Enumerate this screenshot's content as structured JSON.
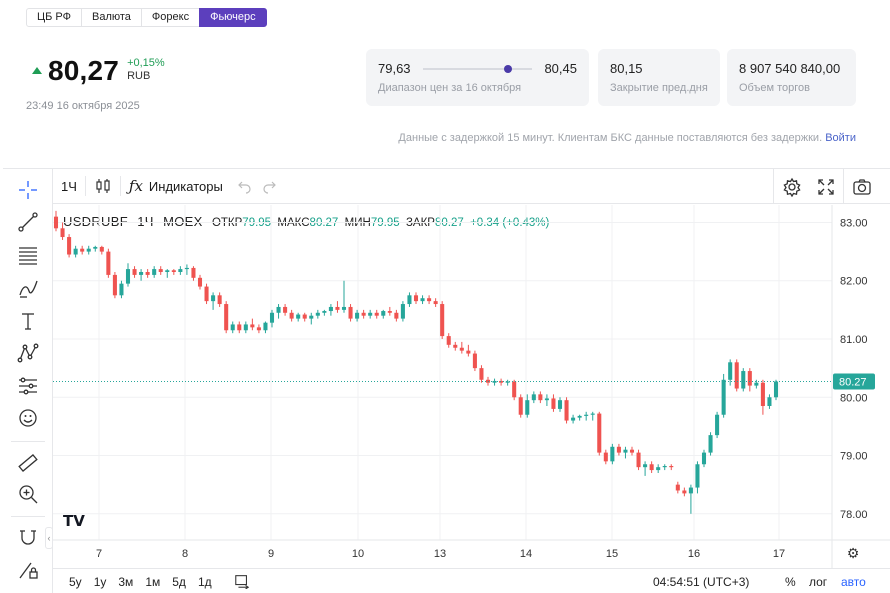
{
  "tabs": [
    {
      "label": "ЦБ РФ",
      "active": false
    },
    {
      "label": "Валюта",
      "active": false
    },
    {
      "label": "Форекс",
      "active": false
    },
    {
      "label": "Фьючерс",
      "active": true
    }
  ],
  "quote": {
    "price": "80,27",
    "change_pct": "+0,15%",
    "currency": "RUB",
    "timestamp": "23:49 16 октября 2025",
    "direction": "up"
  },
  "stats": {
    "range": {
      "low": "79,63",
      "high": "80,45",
      "label": "Диапазон цен за 16 октября",
      "position_fraction": 0.78
    },
    "prev_close": {
      "value": "80,15",
      "label": "Закрытие пред.дня"
    },
    "volume": {
      "value": "8 907 540 840,00",
      "label": "Объем торгов"
    }
  },
  "delay_note": {
    "text": "Данные с задержкой 15 минут. Клиентам БКС данные поставляются без задержки.",
    "link": "Войти"
  },
  "toolbar": {
    "interval": "1Ч",
    "indicators_label": "Индикаторы",
    "icons": [
      "candles-icon",
      "function-icon",
      "undo-icon",
      "redo-icon",
      "settings-icon",
      "fullscreen-icon",
      "camera-icon"
    ]
  },
  "left_tools": [
    "crosshair-icon",
    "trend-line-icon",
    "fib-icon",
    "brush-icon",
    "text-icon",
    "pattern-icon",
    "measure-prediction-icon",
    "emoji-icon",
    "ruler-icon",
    "zoom-in-icon",
    "magnet-icon",
    "lock-pen-icon"
  ],
  "legend": {
    "symbol": "USDRUBF",
    "interval": "1Ч",
    "exchange": "MOEX",
    "open_label": "ОТКР",
    "open": "79.95",
    "high_label": "МАКС",
    "high": "80.27",
    "low_label": "МИН",
    "low": "79.95",
    "close_label": "ЗАКР",
    "close": "80.27",
    "change": "+0.34 (+0.43%)"
  },
  "bottom_bar": {
    "ranges": [
      "5y",
      "1y",
      "3м",
      "1м",
      "5д",
      "1д"
    ],
    "clock": "04:54:51 (UTC+3)",
    "percent": "%",
    "log": "лог",
    "auto": "авто"
  },
  "colors": {
    "up": "#26a69a",
    "down": "#ef5350",
    "accent": "#5c3fbd",
    "price_tag": "#26a69a"
  },
  "chart_data": {
    "type": "candlestick",
    "symbol": "USDRUBF",
    "x_ticks": [
      "7",
      "8",
      "9",
      "10",
      "13",
      "14",
      "15",
      "16",
      "17"
    ],
    "y_ticks": [
      "78.00",
      "79.00",
      "80.00",
      "81.00",
      "82.00",
      "83.00"
    ],
    "ylim": [
      77.55,
      83.3
    ],
    "last_price_label": "80.27",
    "last_price": 80.27,
    "candles": [
      [
        83.1,
        83.2,
        82.85,
        82.9
      ],
      [
        82.9,
        83.0,
        82.7,
        82.75
      ],
      [
        82.75,
        82.8,
        82.4,
        82.45
      ],
      [
        82.45,
        82.6,
        82.4,
        82.55
      ],
      [
        82.55,
        82.6,
        82.45,
        82.5
      ],
      [
        82.5,
        82.6,
        82.45,
        82.55
      ],
      [
        82.55,
        82.6,
        82.5,
        82.58
      ],
      [
        82.58,
        82.6,
        82.45,
        82.5
      ],
      [
        82.5,
        82.55,
        82.05,
        82.1
      ],
      [
        82.1,
        82.15,
        81.7,
        81.75
      ],
      [
        81.75,
        82.0,
        81.7,
        81.95
      ],
      [
        81.95,
        82.3,
        81.9,
        82.2
      ],
      [
        82.2,
        82.25,
        82.05,
        82.1
      ],
      [
        82.1,
        82.2,
        82.0,
        82.15
      ],
      [
        82.15,
        82.2,
        82.05,
        82.1
      ],
      [
        82.1,
        82.25,
        82.05,
        82.2
      ],
      [
        82.2,
        82.25,
        82.1,
        82.15
      ],
      [
        82.15,
        82.2,
        82.05,
        82.18
      ],
      [
        82.18,
        82.2,
        82.1,
        82.15
      ],
      [
        82.15,
        82.25,
        82.1,
        82.2
      ],
      [
        82.2,
        82.28,
        82.1,
        82.22
      ],
      [
        82.22,
        82.25,
        82.0,
        82.05
      ],
      [
        82.05,
        82.1,
        81.85,
        81.9
      ],
      [
        81.9,
        81.95,
        81.6,
        81.65
      ],
      [
        81.65,
        81.8,
        81.5,
        81.75
      ],
      [
        81.75,
        81.8,
        81.55,
        81.6
      ],
      [
        81.6,
        81.65,
        81.1,
        81.15
      ],
      [
        81.15,
        81.3,
        81.1,
        81.25
      ],
      [
        81.25,
        81.3,
        81.1,
        81.15
      ],
      [
        81.15,
        81.3,
        81.1,
        81.25
      ],
      [
        81.25,
        81.35,
        81.15,
        81.2
      ],
      [
        81.2,
        81.25,
        81.1,
        81.15
      ],
      [
        81.15,
        81.3,
        81.1,
        81.28
      ],
      [
        81.28,
        81.5,
        81.2,
        81.45
      ],
      [
        81.45,
        81.6,
        81.35,
        81.55
      ],
      [
        81.55,
        81.6,
        81.4,
        81.45
      ],
      [
        81.45,
        81.5,
        81.3,
        81.35
      ],
      [
        81.35,
        81.45,
        81.3,
        81.42
      ],
      [
        81.42,
        81.45,
        81.3,
        81.35
      ],
      [
        81.35,
        81.45,
        81.25,
        81.4
      ],
      [
        81.4,
        81.5,
        81.35,
        81.45
      ],
      [
        81.45,
        81.5,
        81.4,
        81.48
      ],
      [
        81.48,
        81.6,
        81.4,
        81.55
      ],
      [
        81.55,
        81.65,
        81.45,
        81.5
      ],
      [
        81.5,
        82.0,
        81.45,
        81.55
      ],
      [
        81.55,
        81.6,
        81.3,
        81.35
      ],
      [
        81.35,
        81.5,
        81.3,
        81.45
      ],
      [
        81.45,
        81.5,
        81.35,
        81.4
      ],
      [
        81.4,
        81.5,
        81.35,
        81.45
      ],
      [
        81.45,
        81.5,
        81.35,
        81.4
      ],
      [
        81.4,
        81.5,
        81.35,
        81.48
      ],
      [
        81.48,
        81.55,
        81.4,
        81.45
      ],
      [
        81.45,
        81.5,
        81.3,
        81.35
      ],
      [
        81.35,
        81.65,
        81.3,
        81.6
      ],
      [
        81.6,
        81.8,
        81.55,
        81.75
      ],
      [
        81.75,
        81.8,
        81.6,
        81.65
      ],
      [
        81.65,
        81.75,
        81.6,
        81.7
      ],
      [
        81.7,
        81.75,
        81.6,
        81.65
      ],
      [
        81.65,
        81.7,
        81.55,
        81.6
      ],
      [
        81.6,
        81.65,
        81.0,
        81.05
      ],
      [
        81.05,
        81.1,
        80.85,
        80.9
      ],
      [
        80.9,
        80.95,
        80.8,
        80.85
      ],
      [
        80.85,
        80.95,
        80.75,
        80.8
      ],
      [
        80.8,
        80.9,
        80.7,
        80.75
      ],
      [
        80.75,
        80.8,
        80.45,
        80.5
      ],
      [
        80.5,
        80.55,
        80.25,
        80.3
      ],
      [
        80.3,
        80.35,
        80.2,
        80.25
      ],
      [
        80.25,
        80.32,
        80.2,
        80.28
      ],
      [
        80.28,
        80.32,
        80.2,
        80.25
      ],
      [
        80.25,
        80.3,
        80.2,
        80.27
      ],
      [
        80.27,
        80.3,
        79.95,
        80.0
      ],
      [
        80.0,
        80.05,
        79.65,
        79.7
      ],
      [
        79.7,
        80.05,
        79.65,
        79.95
      ],
      [
        79.95,
        80.1,
        79.9,
        80.05
      ],
      [
        80.05,
        80.1,
        79.9,
        79.95
      ],
      [
        79.95,
        80.05,
        79.85,
        79.98
      ],
      [
        79.98,
        80.05,
        79.75,
        79.8
      ],
      [
        79.8,
        80.0,
        79.75,
        79.95
      ],
      [
        79.95,
        80.0,
        79.55,
        79.6
      ],
      [
        79.6,
        79.7,
        79.55,
        79.65
      ],
      [
        79.65,
        79.7,
        79.6,
        79.68
      ],
      [
        79.68,
        79.75,
        79.6,
        79.7
      ],
      [
        79.7,
        79.75,
        79.6,
        79.72
      ],
      [
        79.72,
        79.75,
        79.0,
        79.05
      ],
      [
        79.05,
        79.1,
        78.85,
        78.9
      ],
      [
        78.9,
        79.2,
        78.85,
        79.15
      ],
      [
        79.15,
        79.2,
        79.0,
        79.05
      ],
      [
        79.05,
        79.15,
        78.95,
        79.1
      ],
      [
        79.1,
        79.15,
        79.0,
        79.05
      ],
      [
        79.05,
        79.1,
        78.75,
        78.8
      ],
      [
        78.8,
        78.9,
        78.65,
        78.85
      ],
      [
        78.85,
        78.9,
        78.7,
        78.75
      ],
      [
        78.75,
        78.85,
        78.7,
        78.8
      ],
      [
        78.8,
        78.85,
        78.75,
        78.82
      ],
      [
        78.82,
        78.85,
        78.75,
        78.8
      ],
      [
        78.5,
        78.55,
        78.35,
        78.4
      ],
      [
        78.4,
        78.45,
        78.3,
        78.35
      ],
      [
        78.35,
        78.5,
        78.0,
        78.45
      ],
      [
        78.45,
        78.9,
        78.35,
        78.85
      ],
      [
        78.85,
        79.1,
        78.8,
        79.05
      ],
      [
        79.05,
        79.4,
        79.0,
        79.35
      ],
      [
        79.35,
        79.75,
        79.3,
        79.7
      ],
      [
        79.7,
        80.4,
        79.65,
        80.3
      ],
      [
        80.3,
        80.65,
        80.2,
        80.6
      ],
      [
        80.6,
        80.65,
        80.1,
        80.15
      ],
      [
        80.15,
        80.5,
        80.1,
        80.45
      ],
      [
        80.45,
        80.5,
        80.1,
        80.2
      ],
      [
        80.2,
        80.3,
        80.15,
        80.25
      ],
      [
        80.25,
        80.3,
        79.7,
        79.85
      ],
      [
        79.85,
        80.05,
        79.8,
        80.0
      ],
      [
        80.0,
        80.3,
        79.95,
        80.27
      ]
    ]
  }
}
